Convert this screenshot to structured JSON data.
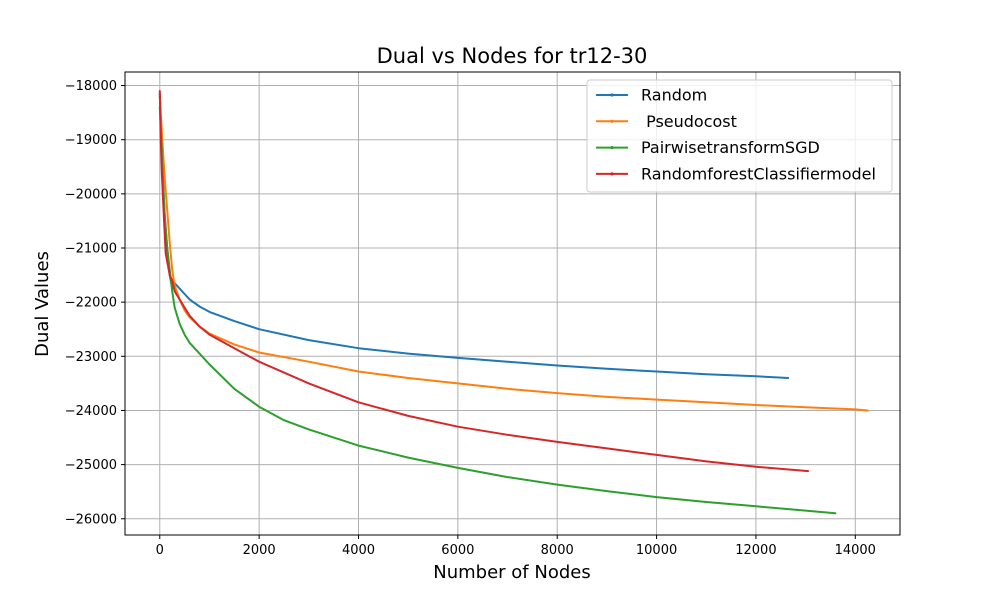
{
  "chart_data": {
    "type": "line",
    "title": "Dual vs Nodes for tr12-30",
    "xlabel": "Number of Nodes",
    "ylabel": "Dual Values",
    "xlim": [
      -700,
      14900
    ],
    "ylim": [
      -26300,
      -17750
    ],
    "xticks": [
      0,
      2000,
      4000,
      6000,
      8000,
      10000,
      12000,
      14000
    ],
    "yticks": [
      -18000,
      -19000,
      -20000,
      -21000,
      -22000,
      -23000,
      -24000,
      -25000,
      -26000
    ],
    "grid": true,
    "legend_position": "top-right",
    "series": [
      {
        "name": "Random",
        "color": "#1f77b4",
        "x": [
          0,
          30,
          60,
          100,
          150,
          200,
          250,
          300,
          350,
          400,
          500,
          600,
          800,
          1000,
          1500,
          2000,
          3000,
          4000,
          5000,
          6000,
          7000,
          8000,
          9000,
          10000,
          11000,
          12000,
          12650
        ],
        "y": [
          -18150,
          -19000,
          -19700,
          -20400,
          -21000,
          -21500,
          -21750,
          -21650,
          -21700,
          -21750,
          -21850,
          -21950,
          -22080,
          -22180,
          -22350,
          -22500,
          -22700,
          -22850,
          -22950,
          -23030,
          -23100,
          -23170,
          -23230,
          -23280,
          -23330,
          -23370,
          -23400
        ]
      },
      {
        "name": " Pseudocost",
        "color": "#ff7f0e",
        "x": [
          0,
          50,
          100,
          150,
          200,
          250,
          300,
          400,
          500,
          600,
          800,
          1000,
          1500,
          2000,
          3000,
          4000,
          5000,
          6000,
          7000,
          8000,
          9000,
          10000,
          11000,
          12000,
          13000,
          14000,
          14250
        ],
        "y": [
          -18200,
          -19000,
          -19700,
          -20300,
          -20900,
          -21400,
          -21700,
          -21950,
          -22150,
          -22280,
          -22450,
          -22580,
          -22780,
          -22930,
          -23100,
          -23280,
          -23400,
          -23500,
          -23600,
          -23680,
          -23750,
          -23800,
          -23850,
          -23900,
          -23940,
          -23980,
          -24000
        ]
      },
      {
        "name": "PairwisetransformSGD",
        "color": "#2ca02c",
        "x": [
          0,
          30,
          60,
          100,
          150,
          200,
          250,
          300,
          400,
          500,
          600,
          800,
          1000,
          1500,
          2000,
          2500,
          3000,
          4000,
          5000,
          6000,
          7000,
          8000,
          9000,
          10000,
          11000,
          12000,
          13000,
          13600
        ],
        "y": [
          -18400,
          -19000,
          -19700,
          -20400,
          -21000,
          -21400,
          -21800,
          -22100,
          -22400,
          -22600,
          -22750,
          -22950,
          -23150,
          -23600,
          -23930,
          -24180,
          -24350,
          -24650,
          -24870,
          -25060,
          -25230,
          -25370,
          -25490,
          -25600,
          -25690,
          -25770,
          -25850,
          -25900
        ]
      },
      {
        "name": "RandomforestClassifiermodel",
        "color": "#d62728",
        "x": [
          0,
          20,
          40,
          80,
          120,
          160,
          200,
          250,
          300,
          400,
          500,
          600,
          800,
          1000,
          1500,
          2000,
          3000,
          4000,
          5000,
          6000,
          7000,
          8000,
          9000,
          10000,
          11000,
          12000,
          13050
        ],
        "y": [
          -18100,
          -19000,
          -19600,
          -20400,
          -21100,
          -21300,
          -21500,
          -21600,
          -21800,
          -21950,
          -22100,
          -22250,
          -22450,
          -22600,
          -22850,
          -23100,
          -23500,
          -23850,
          -24100,
          -24300,
          -24450,
          -24580,
          -24700,
          -24820,
          -24940,
          -25040,
          -25120
        ]
      }
    ]
  }
}
